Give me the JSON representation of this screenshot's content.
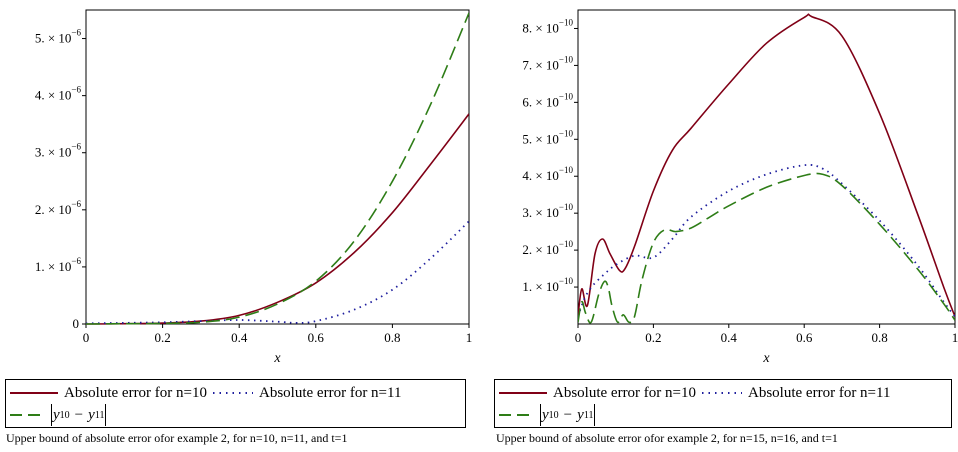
{
  "chart_data": [
    {
      "type": "line",
      "xlabel": "x",
      "xlim": [
        0,
        1
      ],
      "ylim": [
        0,
        5.5e-06
      ],
      "xticks": [
        "0",
        "0.2",
        "0.4",
        "0.6",
        "0.8",
        "1"
      ],
      "yticks": [
        {
          "mant": "0",
          "exp": ""
        },
        {
          "mant": "1. × 10",
          "exp": "−6"
        },
        {
          "mant": "2. × 10",
          "exp": "−6"
        },
        {
          "mant": "3. × 10",
          "exp": "−6"
        },
        {
          "mant": "4. × 10",
          "exp": "−6"
        },
        {
          "mant": "5. × 10",
          "exp": "−6"
        }
      ],
      "series": [
        {
          "name": "Absolute error for n=10",
          "color": "#800016",
          "dash": "solid",
          "x": [
            0,
            0.1,
            0.2,
            0.3,
            0.4,
            0.5,
            0.6,
            0.7,
            0.8,
            0.9,
            1.0
          ],
          "y": [
            0,
            5e-09,
            1.5e-08,
            5e-08,
            1.5e-07,
            3.8e-07,
            7.2e-07,
            1.25e-06,
            1.95e-06,
            2.8e-06,
            3.68e-06
          ]
        },
        {
          "name": "Absolute error for n=11",
          "color": "#1f1f9e",
          "dash": "dotted",
          "x": [
            0,
            0.1,
            0.2,
            0.3,
            0.4,
            0.5,
            0.55,
            0.6,
            0.7,
            0.8,
            0.9,
            1.0
          ],
          "y": [
            1e-08,
            2e-08,
            3e-08,
            5e-08,
            7e-08,
            4e-08,
            2e-08,
            5e-08,
            2.5e-07,
            6e-07,
            1.15e-06,
            1.8e-06
          ]
        },
        {
          "name": "|y10 − y11|",
          "color": "#2e7d17",
          "dash": "dashed",
          "x": [
            0,
            0.1,
            0.2,
            0.3,
            0.4,
            0.5,
            0.6,
            0.7,
            0.8,
            0.9,
            1.0
          ],
          "y": [
            0,
            5e-09,
            1e-08,
            3e-08,
            1.2e-07,
            3.5e-07,
            7.5e-07,
            1.45e-06,
            2.5e-06,
            3.85e-06,
            5.45e-06
          ]
        }
      ]
    },
    {
      "type": "line",
      "xlabel": "x",
      "xlim": [
        0,
        1
      ],
      "ylim": [
        0,
        8.5e-10
      ],
      "xticks": [
        "0",
        "0.2",
        "0.4",
        "0.6",
        "0.8",
        "1"
      ],
      "yticks": [
        {
          "mant": "1. × 10",
          "exp": "−10"
        },
        {
          "mant": "2. × 10",
          "exp": "−10"
        },
        {
          "mant": "3. × 10",
          "exp": "−10"
        },
        {
          "mant": "4. × 10",
          "exp": "−10"
        },
        {
          "mant": "5. × 10",
          "exp": "−10"
        },
        {
          "mant": "6. × 10",
          "exp": "−10"
        },
        {
          "mant": "7. × 10",
          "exp": "−10"
        },
        {
          "mant": "8. × 10",
          "exp": "−10"
        }
      ],
      "series": [
        {
          "name": "Absolute error for n=10",
          "color": "#800016",
          "dash": "solid",
          "x": [
            0,
            0.01,
            0.025,
            0.045,
            0.065,
            0.085,
            0.11,
            0.125,
            0.15,
            0.2,
            0.25,
            0.3,
            0.4,
            0.5,
            0.6,
            0.62,
            0.7,
            0.8,
            0.9,
            0.97,
            1.0
          ],
          "y": [
            2e-11,
            9.5e-11,
            5e-11,
            1.9e-10,
            2.3e-10,
            1.9e-10,
            1.45e-10,
            1.5e-10,
            2.1e-10,
            3.6e-10,
            4.7e-10,
            5.3e-10,
            6.5e-10,
            7.6e-10,
            8.3e-10,
            8.32e-10,
            7.8e-10,
            5.7e-10,
            3e-10,
            1e-10,
            2e-11
          ]
        },
        {
          "name": "Absolute error for n=11",
          "color": "#1f1f9e",
          "dash": "dotted",
          "x": [
            0,
            0.01,
            0.02,
            0.04,
            0.07,
            0.1,
            0.15,
            0.2,
            0.25,
            0.3,
            0.4,
            0.5,
            0.6,
            0.65,
            0.7,
            0.8,
            0.9,
            0.97,
            1.0
          ],
          "y": [
            2e-11,
            5e-11,
            7.5e-11,
            1.05e-10,
            1.35e-10,
            1.6e-10,
            1.85e-10,
            1.8e-10,
            2.3e-10,
            2.9e-10,
            3.6e-10,
            4.05e-10,
            4.3e-10,
            4.2e-10,
            3.8e-10,
            2.8e-10,
            1.6e-10,
            6e-11,
            2e-11
          ]
        },
        {
          "name": "|y10 − y11|",
          "color": "#2e7d17",
          "dash": "dashed",
          "x": [
            0,
            0.01,
            0.02,
            0.035,
            0.055,
            0.07,
            0.08,
            0.09,
            0.105,
            0.12,
            0.135,
            0.15,
            0.17,
            0.2,
            0.23,
            0.26,
            0.3,
            0.35,
            0.4,
            0.5,
            0.6,
            0.65,
            0.7,
            0.8,
            0.9,
            0.97,
            1.0
          ],
          "y": [
            5e-12,
            6e-11,
            3e-11,
            5e-12,
            8e-11,
            1.15e-10,
            1e-10,
            5e-11,
            5e-12,
            2.5e-11,
            5e-12,
            2e-11,
            1.2e-10,
            2.2e-10,
            2.55e-10,
            2.5e-10,
            2.6e-10,
            2.9e-10,
            3.2e-10,
            3.7e-10,
            4.02e-10,
            4.05e-10,
            3.75e-10,
            2.7e-10,
            1.5e-10,
            5.5e-11,
            1e-11
          ]
        }
      ]
    }
  ],
  "legends": [
    {
      "item1": "Absolute error for n=10",
      "item2": "Absolute error for n=11",
      "eq": {
        "y": "y",
        "s1": "10",
        "op": "−",
        "s2": "11"
      }
    },
    {
      "item1": "Absolute error for n=10",
      "item2": "Absolute error for n=11",
      "eq": {
        "y": "y",
        "s1": "10",
        "op": "−",
        "s2": "11"
      }
    }
  ],
  "captions": [
    "Upper bound of absolute error ofor example 2, for n=10, n=11, and t=1",
    "Upper bound of absolute error ofor example 2, for n=15, n=16, and t=1"
  ]
}
